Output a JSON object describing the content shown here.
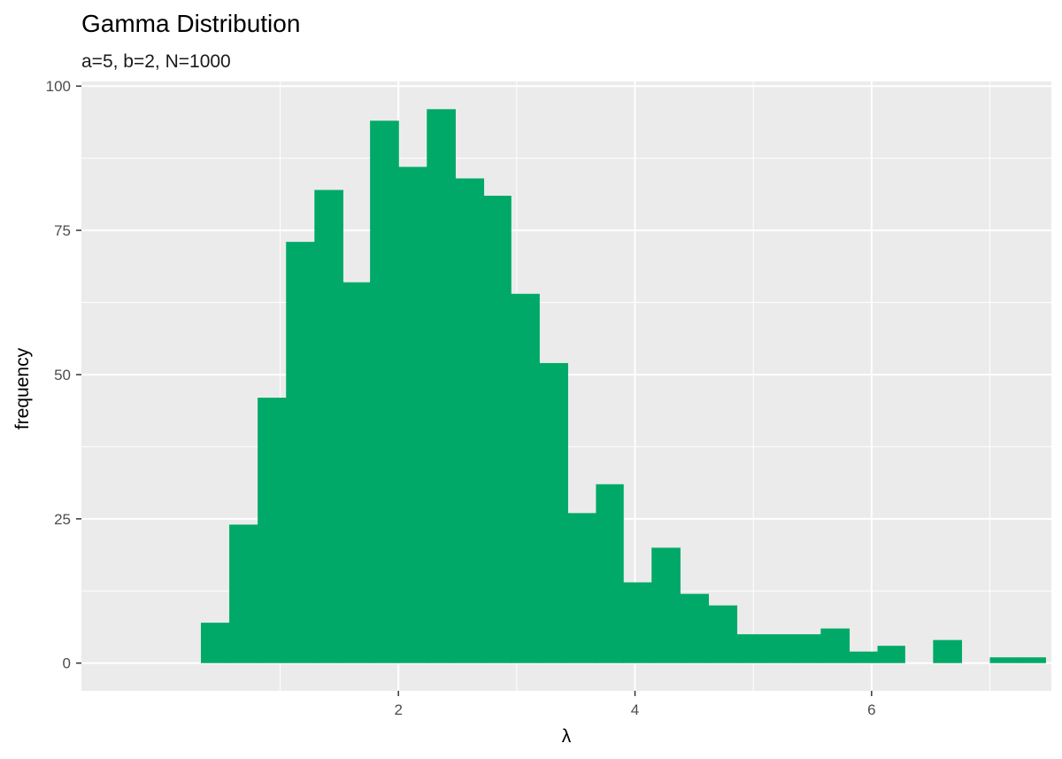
{
  "chart_data": {
    "type": "bar",
    "title": "Gamma Distribution",
    "subtitle": "a=5, b=2, N=1000",
    "xlabel": "λ",
    "ylabel": "frequency",
    "x_ticks": [
      2,
      4,
      6
    ],
    "x_tick_labels": [
      "2",
      "4",
      "6"
    ],
    "y_ticks": [
      0,
      25,
      50,
      75,
      100
    ],
    "y_tick_labels": [
      "0",
      "25",
      "50",
      "75",
      "100"
    ],
    "xlim": [
      -0.68,
      7.52
    ],
    "ylim": [
      -4.8,
      100.8
    ],
    "grid": true,
    "bar_color": "#00A967",
    "panel_color": "#EBEBEB",
    "grid_color": "#FFFFFF",
    "bins": [
      {
        "x0": 0.33,
        "x1": 0.57,
        "count": 7
      },
      {
        "x0": 0.57,
        "x1": 0.81,
        "count": 24
      },
      {
        "x0": 0.81,
        "x1": 1.05,
        "count": 46
      },
      {
        "x0": 1.05,
        "x1": 1.29,
        "count": 73
      },
      {
        "x0": 1.29,
        "x1": 1.53,
        "count": 82
      },
      {
        "x0": 1.53,
        "x1": 1.76,
        "count": 66
      },
      {
        "x0": 1.76,
        "x1": 2.0,
        "count": 94
      },
      {
        "x0": 2.0,
        "x1": 2.24,
        "count": 86
      },
      {
        "x0": 2.24,
        "x1": 2.48,
        "count": 96
      },
      {
        "x0": 2.48,
        "x1": 2.72,
        "count": 84
      },
      {
        "x0": 2.72,
        "x1": 2.95,
        "count": 81
      },
      {
        "x0": 2.95,
        "x1": 3.19,
        "count": 64
      },
      {
        "x0": 3.19,
        "x1": 3.43,
        "count": 52
      },
      {
        "x0": 3.43,
        "x1": 3.67,
        "count": 26
      },
      {
        "x0": 3.67,
        "x1": 3.9,
        "count": 31
      },
      {
        "x0": 3.9,
        "x1": 4.14,
        "count": 14
      },
      {
        "x0": 4.14,
        "x1": 4.38,
        "count": 20
      },
      {
        "x0": 4.38,
        "x1": 4.62,
        "count": 12
      },
      {
        "x0": 4.62,
        "x1": 4.86,
        "count": 10
      },
      {
        "x0": 4.86,
        "x1": 5.09,
        "count": 5
      },
      {
        "x0": 5.09,
        "x1": 5.33,
        "count": 5
      },
      {
        "x0": 5.33,
        "x1": 5.57,
        "count": 5
      },
      {
        "x0": 5.57,
        "x1": 5.81,
        "count": 6
      },
      {
        "x0": 5.81,
        "x1": 6.05,
        "count": 2
      },
      {
        "x0": 6.05,
        "x1": 6.28,
        "count": 3
      },
      {
        "x0": 6.28,
        "x1": 6.52,
        "count": 0
      },
      {
        "x0": 6.52,
        "x1": 6.76,
        "count": 4
      },
      {
        "x0": 6.76,
        "x1": 7.0,
        "count": 0
      },
      {
        "x0": 7.0,
        "x1": 7.24,
        "count": 1
      },
      {
        "x0": 7.24,
        "x1": 7.47,
        "count": 1
      }
    ]
  }
}
